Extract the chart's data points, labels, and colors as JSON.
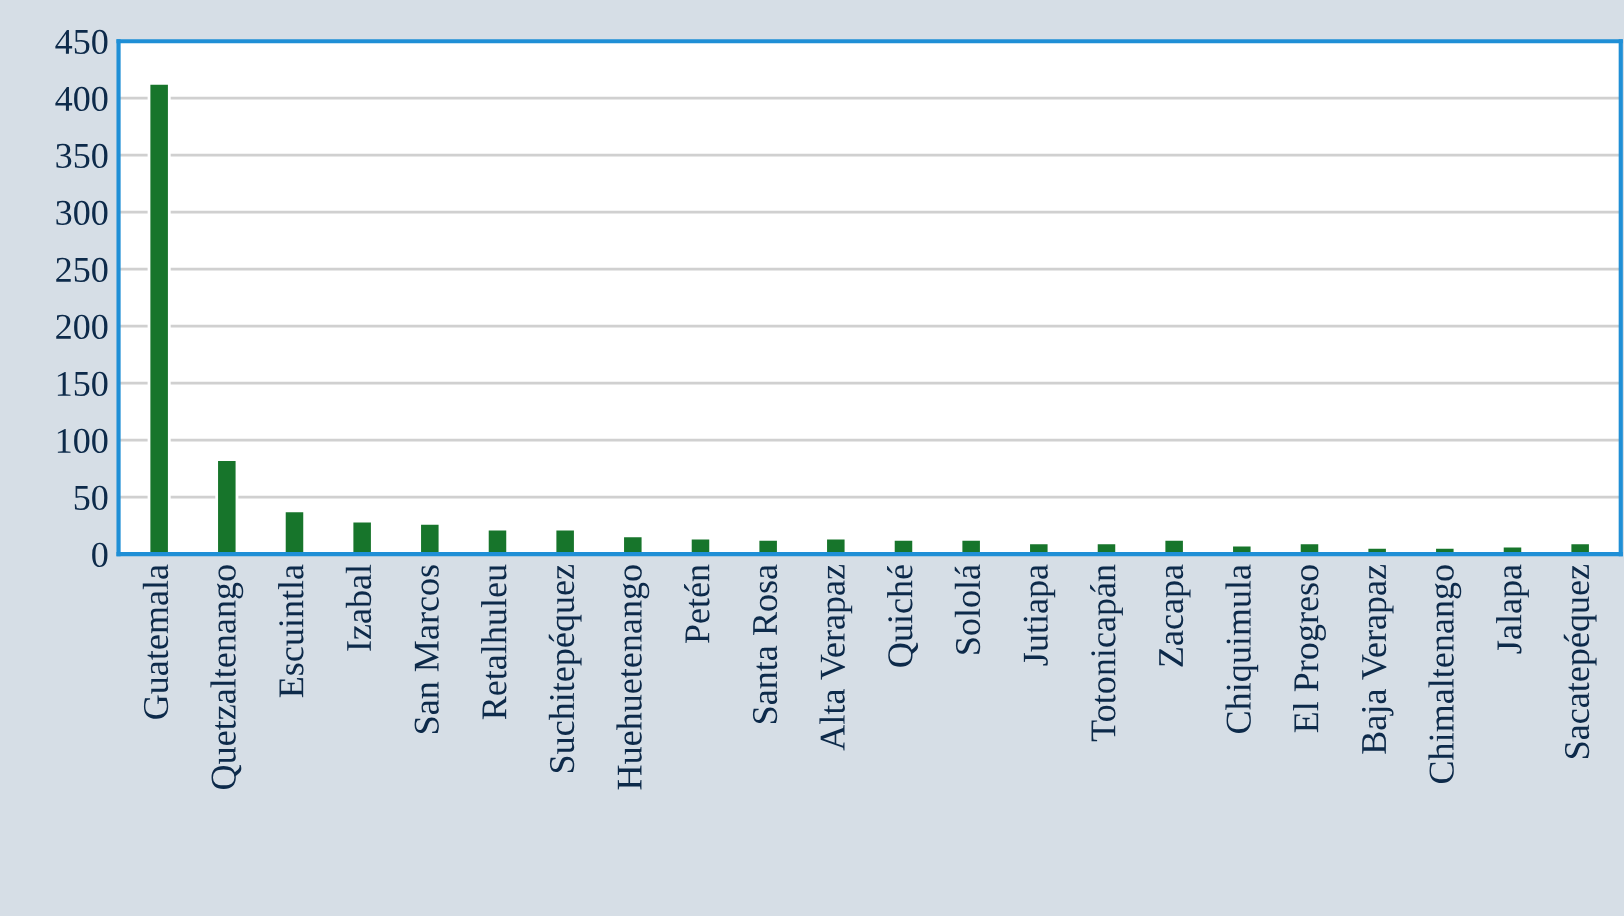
{
  "chart_data": {
    "type": "bar",
    "categories": [
      "Guatemala",
      "Quetzaltenango",
      "Escuintla",
      "Izabal",
      "San Marcos",
      "Retalhuleu",
      "Suchitepéquez",
      "Huehuetenango",
      "Petén",
      "Santa Rosa",
      "Alta Verapaz",
      "Quiché",
      "Sololá",
      "Jutiapa",
      "Totonicapán",
      "Zacapa",
      "Chiquimula",
      "El Progreso",
      "Baja Verapaz",
      "Chimaltenango",
      "Jalapa",
      "Sacatepéquez"
    ],
    "values": [
      413,
      83,
      38,
      29,
      27,
      22,
      22,
      16,
      14,
      13,
      14,
      13,
      13,
      10,
      10,
      13,
      8,
      10,
      6,
      6,
      7,
      10
    ],
    "color": "#17752b",
    "ylim": [
      0,
      450
    ],
    "yticks": [
      0,
      50,
      100,
      150,
      200,
      250,
      300,
      350,
      400,
      450
    ],
    "grid": "y"
  }
}
